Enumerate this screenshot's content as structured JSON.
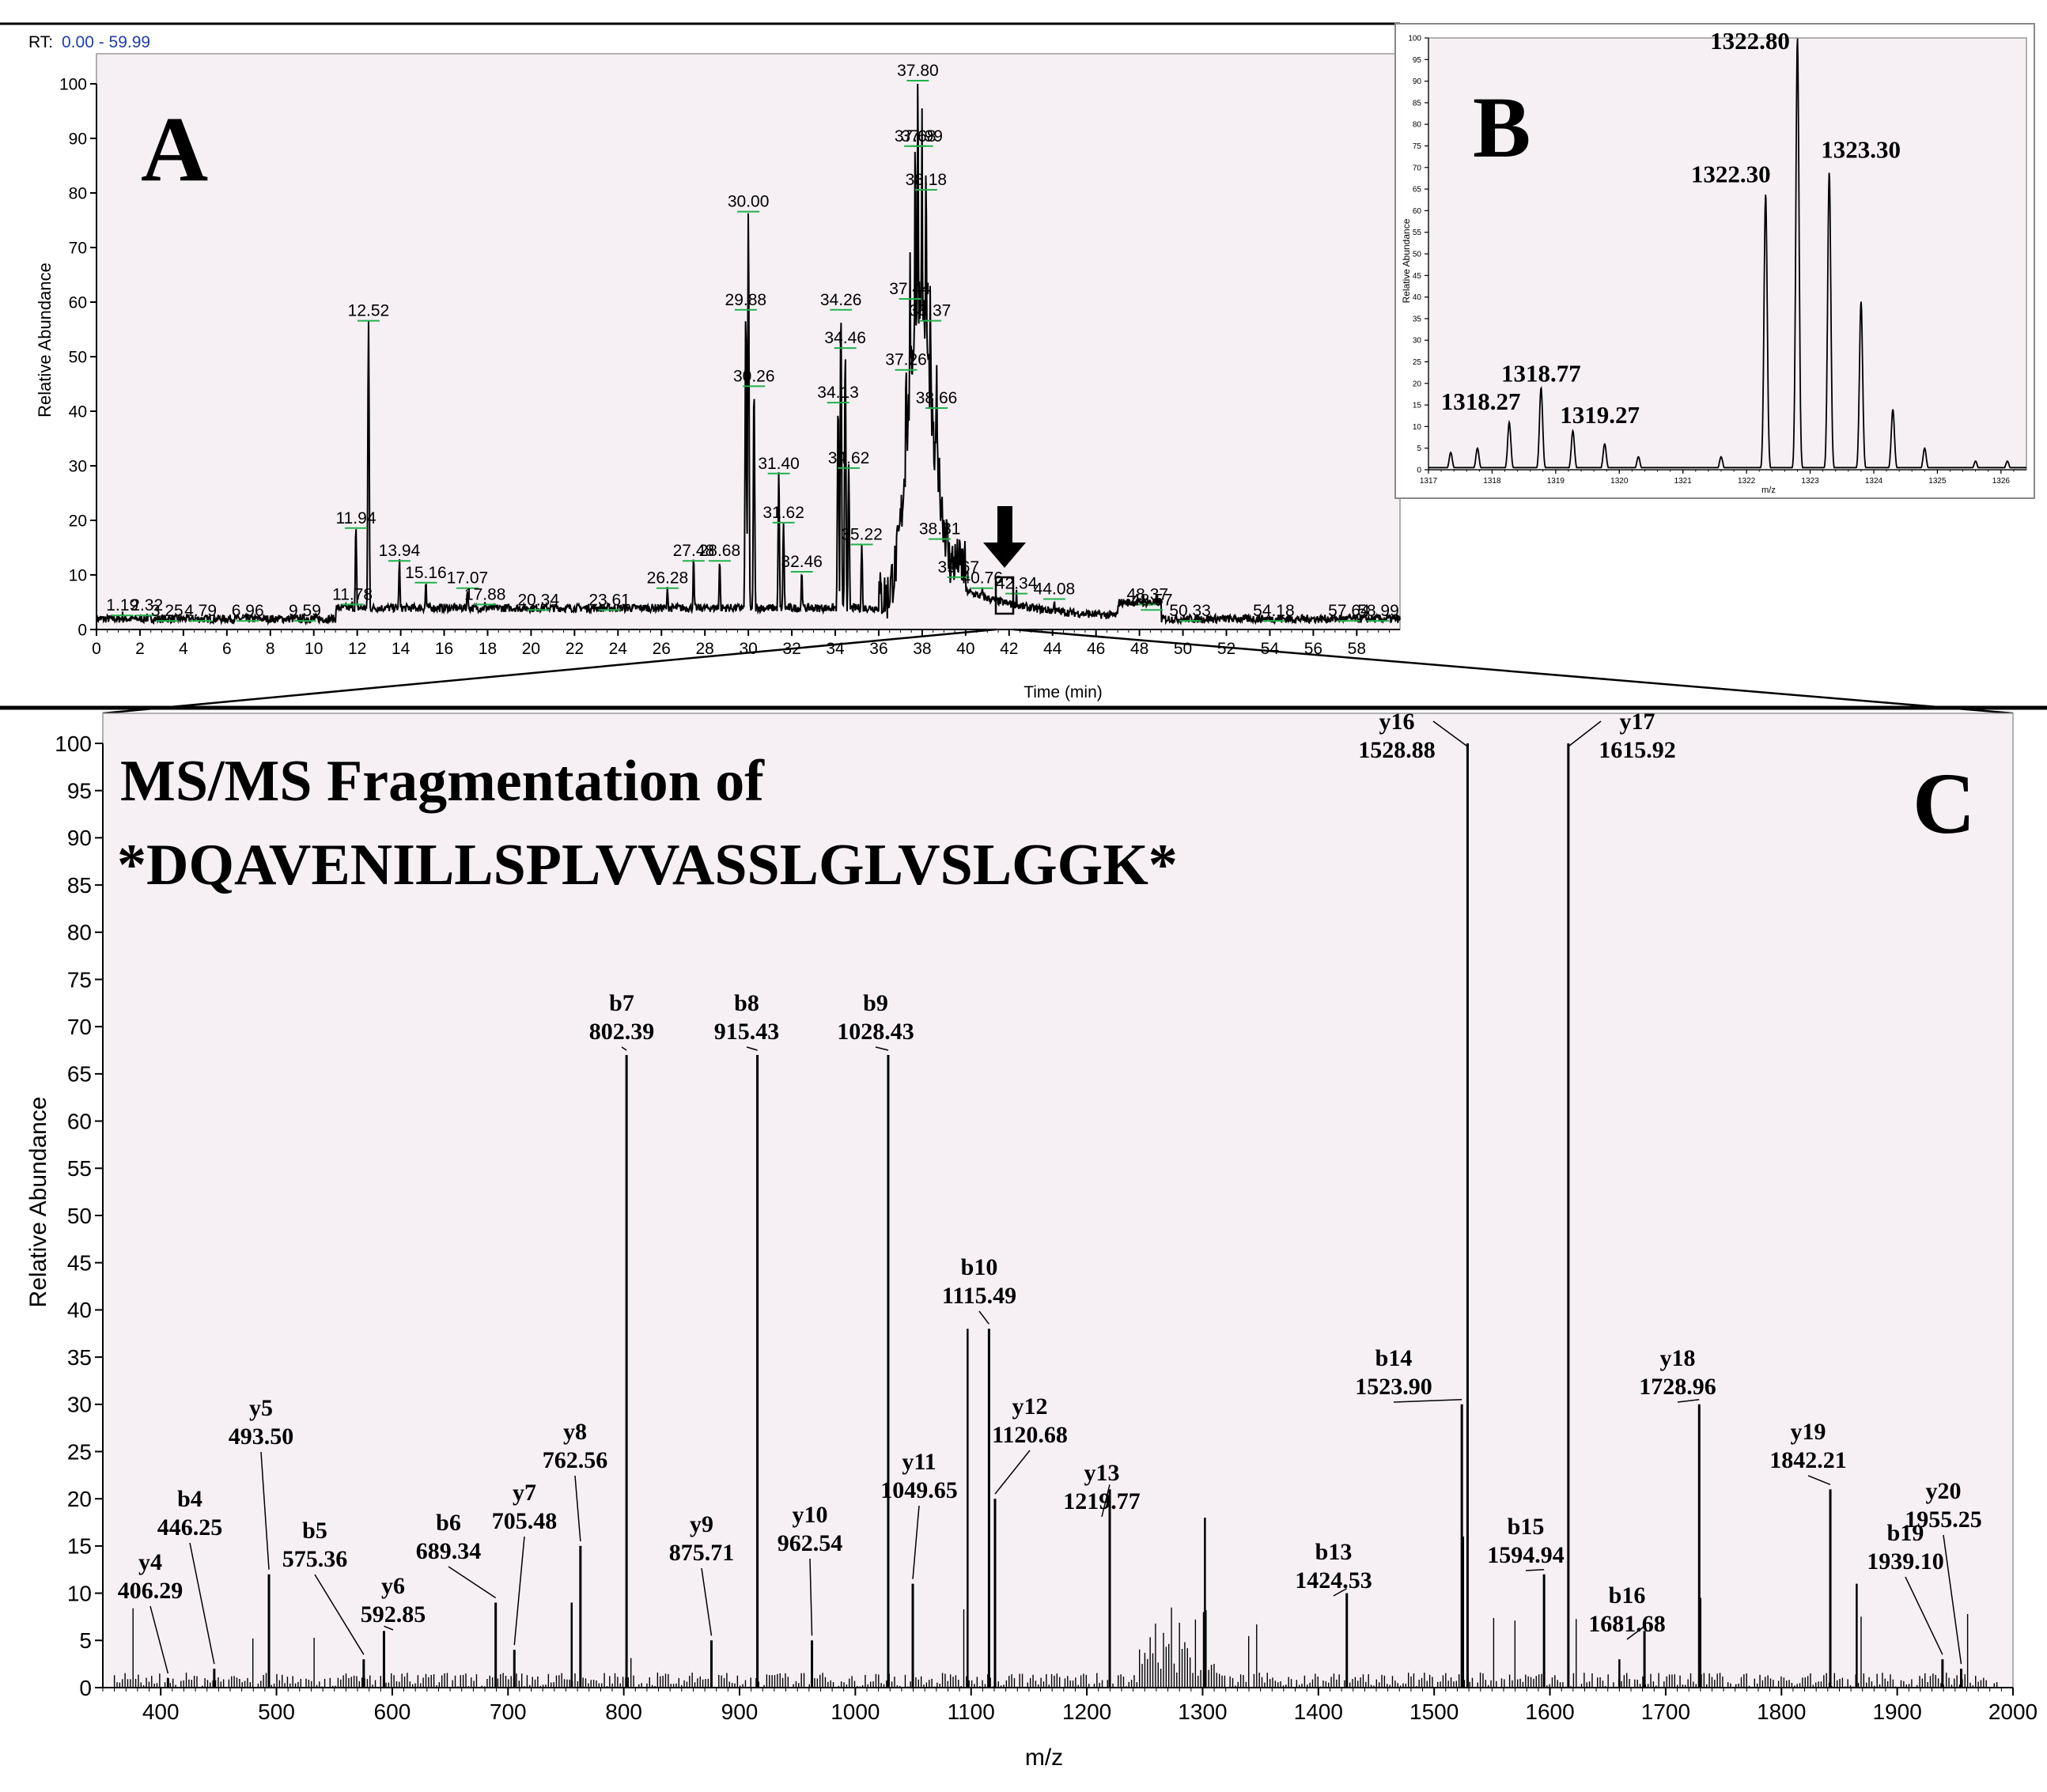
{
  "panelA": {
    "letter": "A",
    "rt_label": "RT:",
    "rt_range": "0.00 - 59.99",
    "ylabel": "Relative Abundance",
    "xlabel": "Time (min)"
  },
  "panelB": {
    "letter": "B",
    "xlabel": "m/z",
    "ylabel": "Relative Abundance"
  },
  "panelC": {
    "letter": "C",
    "title_line1": "MS/MS Fragmentation of",
    "title_line2": "*DQAVENILLSPLVVASSLGLVSLGGK*",
    "ylabel": "Relative Abundance",
    "xlabel": "m/z"
  },
  "colors": {
    "axis": "#000000",
    "background": "#f6f0f4",
    "trace": "#000000",
    "annotation_tick": "#22b14c",
    "rt_range_text": "#1f3fa0"
  },
  "chart_data": [
    {
      "id": "A",
      "type": "line",
      "title": "",
      "xlabel": "Time (min)",
      "ylabel": "Relative Abundance",
      "xlim": [
        0,
        59.99
      ],
      "ylim": [
        0,
        100
      ],
      "xticks": [
        0,
        2,
        4,
        6,
        8,
        10,
        12,
        14,
        16,
        18,
        20,
        22,
        24,
        26,
        28,
        30,
        32,
        34,
        36,
        38,
        40,
        42,
        44,
        46,
        48,
        50,
        52,
        54,
        56,
        58
      ],
      "yticks": [
        0,
        10,
        20,
        30,
        40,
        50,
        60,
        70,
        80,
        90,
        100
      ],
      "peaks": [
        {
          "x": 1.19,
          "y": 2,
          "label": "1.19"
        },
        {
          "x": 2.32,
          "y": 2,
          "label": "2.32"
        },
        {
          "x": 3.25,
          "y": 1,
          "label": "3.25"
        },
        {
          "x": 4.79,
          "y": 1,
          "label": "4.79"
        },
        {
          "x": 6.96,
          "y": 1,
          "label": "6.96"
        },
        {
          "x": 9.59,
          "y": 1,
          "label": "9.59"
        },
        {
          "x": 11.78,
          "y": 4,
          "label": "11.78"
        },
        {
          "x": 11.94,
          "y": 18,
          "label": "11.94"
        },
        {
          "x": 12.52,
          "y": 56,
          "label": "12.52"
        },
        {
          "x": 13.94,
          "y": 12,
          "label": "13.94"
        },
        {
          "x": 15.16,
          "y": 8,
          "label": "15.16"
        },
        {
          "x": 17.07,
          "y": 7,
          "label": "17.07"
        },
        {
          "x": 17.88,
          "y": 4,
          "label": "17.88"
        },
        {
          "x": 20.34,
          "y": 3,
          "label": "20.34"
        },
        {
          "x": 23.61,
          "y": 3,
          "label": "23.61"
        },
        {
          "x": 26.28,
          "y": 7,
          "label": "26.28"
        },
        {
          "x": 27.48,
          "y": 12,
          "label": "27.48"
        },
        {
          "x": 28.68,
          "y": 12,
          "label": "28.68"
        },
        {
          "x": 29.88,
          "y": 58,
          "label": "29.88"
        },
        {
          "x": 30.0,
          "y": 76,
          "label": "30.00"
        },
        {
          "x": 30.26,
          "y": 44,
          "label": "30.26"
        },
        {
          "x": 31.4,
          "y": 28,
          "label": "31.40"
        },
        {
          "x": 31.62,
          "y": 19,
          "label": "31.62"
        },
        {
          "x": 32.46,
          "y": 10,
          "label": "32.46"
        },
        {
          "x": 34.13,
          "y": 41,
          "label": "34.13"
        },
        {
          "x": 34.26,
          "y": 58,
          "label": "34.26"
        },
        {
          "x": 34.46,
          "y": 51,
          "label": "34.46"
        },
        {
          "x": 34.62,
          "y": 29,
          "label": "34.62"
        },
        {
          "x": 35.22,
          "y": 15,
          "label": "35.22"
        },
        {
          "x": 37.26,
          "y": 47,
          "label": "37.26"
        },
        {
          "x": 37.44,
          "y": 60,
          "label": "37.44"
        },
        {
          "x": 37.68,
          "y": 88,
          "label": "37.68"
        },
        {
          "x": 37.8,
          "y": 100,
          "label": "37.80"
        },
        {
          "x": 37.99,
          "y": 88,
          "label": "37.99"
        },
        {
          "x": 38.18,
          "y": 80,
          "label": "38.18"
        },
        {
          "x": 38.37,
          "y": 56,
          "label": "38.37"
        },
        {
          "x": 38.66,
          "y": 40,
          "label": "38.66"
        },
        {
          "x": 38.81,
          "y": 16,
          "label": "38.81"
        },
        {
          "x": 39.67,
          "y": 9,
          "label": "39.67"
        },
        {
          "x": 40.76,
          "y": 7,
          "label": "40.76"
        },
        {
          "x": 42.34,
          "y": 6,
          "label": "42.34"
        },
        {
          "x": 44.08,
          "y": 5,
          "label": "44.08"
        },
        {
          "x": 48.37,
          "y": 4,
          "label": "48.37"
        },
        {
          "x": 48.57,
          "y": 3,
          "label": "48.57"
        },
        {
          "x": 50.33,
          "y": 1,
          "label": "50.33"
        },
        {
          "x": 54.18,
          "y": 1,
          "label": "54.18"
        },
        {
          "x": 57.64,
          "y": 1,
          "label": "57.64"
        },
        {
          "x": 58.99,
          "y": 1,
          "label": "58.99"
        }
      ]
    },
    {
      "id": "B",
      "type": "line",
      "title": "",
      "xlabel": "m/z",
      "ylabel": "Relative Abundance",
      "xlim": [
        1317,
        1326.4
      ],
      "ylim": [
        0,
        100
      ],
      "xticks": [
        1317,
        1318,
        1319,
        1320,
        1321,
        1322,
        1323,
        1324,
        1325,
        1326
      ],
      "yticks": [
        0,
        5,
        10,
        15,
        20,
        25,
        30,
        35,
        40,
        45,
        50,
        55,
        60,
        65,
        70,
        75,
        80,
        85,
        90,
        95,
        100
      ],
      "peaks": [
        {
          "x": 1317.35,
          "y": 4
        },
        {
          "x": 1317.77,
          "y": 5
        },
        {
          "x": 1318.27,
          "y": 11,
          "label": "1318.27"
        },
        {
          "x": 1318.77,
          "y": 19,
          "label": "1318.77"
        },
        {
          "x": 1319.27,
          "y": 9,
          "label": "1319.27"
        },
        {
          "x": 1319.77,
          "y": 6
        },
        {
          "x": 1320.3,
          "y": 3
        },
        {
          "x": 1321.6,
          "y": 3
        },
        {
          "x": 1322.3,
          "y": 64,
          "label": "1322.30"
        },
        {
          "x": 1322.8,
          "y": 100,
          "label": "1322.80"
        },
        {
          "x": 1323.3,
          "y": 69,
          "label": "1323.30"
        },
        {
          "x": 1323.8,
          "y": 39
        },
        {
          "x": 1324.3,
          "y": 14
        },
        {
          "x": 1324.8,
          "y": 5
        },
        {
          "x": 1325.6,
          "y": 2
        },
        {
          "x": 1326.1,
          "y": 2
        }
      ]
    },
    {
      "id": "C",
      "type": "bar",
      "title": "MS/MS Fragmentation of *DQAVENILLSPLVVASSLGLVSLGGK*",
      "xlabel": "m/z",
      "ylabel": "Relative Abundance",
      "xlim": [
        350,
        2000
      ],
      "ylim": [
        0,
        100
      ],
      "xticks": [
        400,
        500,
        600,
        700,
        800,
        900,
        1000,
        1100,
        1200,
        1300,
        1400,
        1500,
        1600,
        1700,
        1800,
        1900,
        2000
      ],
      "yticks": [
        0,
        5,
        10,
        15,
        20,
        25,
        30,
        35,
        40,
        45,
        50,
        55,
        60,
        65,
        70,
        75,
        80,
        85,
        90,
        95,
        100
      ],
      "fragments": [
        {
          "ion": "y4",
          "mz": 406.29,
          "label": "406.29",
          "y": 1
        },
        {
          "ion": "b4",
          "mz": 446.25,
          "label": "446.25",
          "y": 2
        },
        {
          "ion": "y5",
          "mz": 493.5,
          "label": "493.50",
          "y": 12
        },
        {
          "ion": "b5",
          "mz": 575.36,
          "label": "575.36",
          "y": 3
        },
        {
          "ion": "y6",
          "mz": 592.85,
          "label": "592.85",
          "y": 6
        },
        {
          "ion": "b6",
          "mz": 689.34,
          "label": "689.34",
          "y": 9
        },
        {
          "ion": "y7",
          "mz": 705.48,
          "label": "705.48",
          "y": 4
        },
        {
          "ion": "y8",
          "mz": 762.56,
          "label": "762.56",
          "y": 15
        },
        {
          "ion": "b7",
          "mz": 802.39,
          "label": "802.39",
          "y": 67
        },
        {
          "ion": "y9",
          "mz": 875.71,
          "label": "875.71",
          "y": 5
        },
        {
          "ion": "b8",
          "mz": 915.43,
          "label": "915.43",
          "y": 67
        },
        {
          "ion": "y10",
          "mz": 962.54,
          "label": "962.54",
          "y": 5
        },
        {
          "ion": "b9",
          "mz": 1028.43,
          "label": "1028.43",
          "y": 67
        },
        {
          "ion": "y11",
          "mz": 1049.65,
          "label": "1049.65",
          "y": 11
        },
        {
          "ion": "b10",
          "mz": 1115.49,
          "label": "1115.49",
          "y": 38
        },
        {
          "ion": "y12",
          "mz": 1120.68,
          "label": "1120.68",
          "y": 20
        },
        {
          "ion": "y13",
          "mz": 1219.77,
          "label": "1219.77",
          "y": 21
        },
        {
          "ion": "b13",
          "mz": 1424.53,
          "label": "1424.53",
          "y": 10
        },
        {
          "ion": "b14",
          "mz": 1523.9,
          "label": "1523.90",
          "y": 30
        },
        {
          "ion": "y16",
          "mz": 1528.88,
          "label": "1528.88",
          "y": 100
        },
        {
          "ion": "b15",
          "mz": 1594.94,
          "label": "1594.94",
          "y": 12
        },
        {
          "ion": "y17",
          "mz": 1615.92,
          "label": "1615.92",
          "y": 100
        },
        {
          "ion": "b16",
          "mz": 1681.68,
          "label": "1681.68",
          "y": 6
        },
        {
          "ion": "y18",
          "mz": 1728.96,
          "label": "1728.96",
          "y": 30
        },
        {
          "ion": "y19",
          "mz": 1842.21,
          "label": "1842.21",
          "y": 21
        },
        {
          "ion": "b19",
          "mz": 1939.1,
          "label": "1939.10",
          "y": 3
        },
        {
          "ion": "y20",
          "mz": 1955.25,
          "label": "1955.25",
          "y": 2
        }
      ]
    }
  ]
}
